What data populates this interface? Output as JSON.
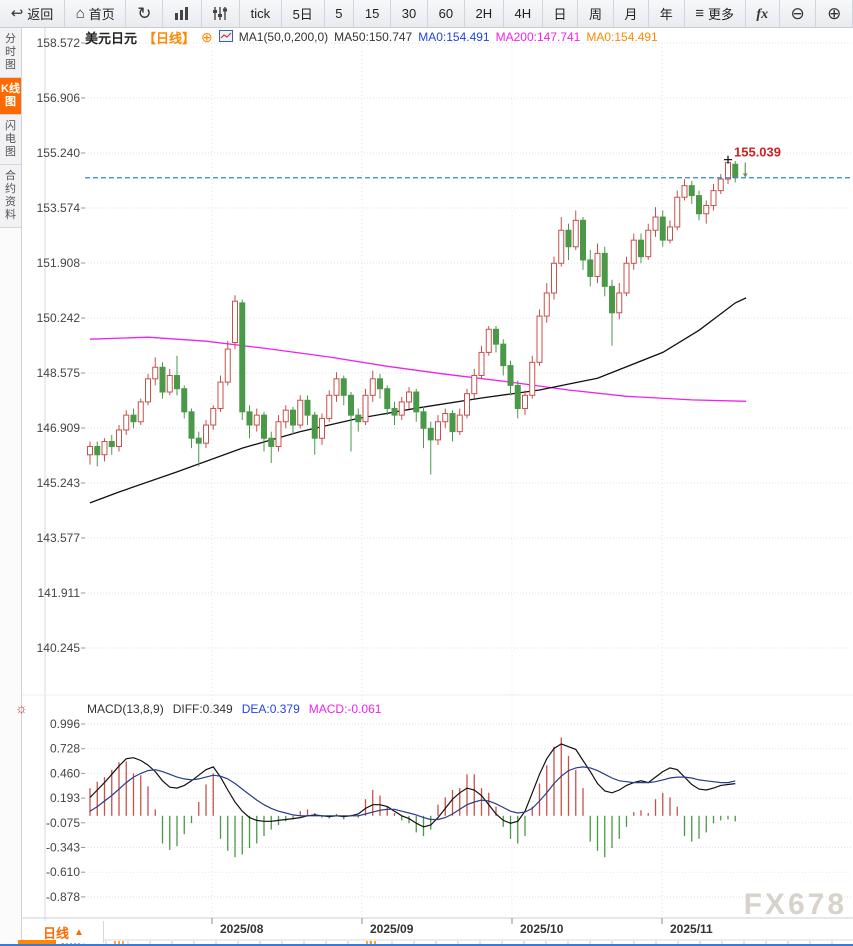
{
  "toolbar": {
    "items": [
      {
        "name": "back-button",
        "icon": "back",
        "label": "返回"
      },
      {
        "name": "home-button",
        "icon": "home",
        "label": "首页"
      },
      {
        "name": "refresh-button",
        "icon": "refresh"
      },
      {
        "name": "volume-chart-button",
        "icon": "bar-chart"
      },
      {
        "name": "indicator-button",
        "icon": "kline"
      },
      {
        "name": "period-tick-button",
        "label": "tick"
      },
      {
        "name": "period-5d-button",
        "label": "5日"
      },
      {
        "name": "period-5m-button",
        "label": "5"
      },
      {
        "name": "period-15m-button",
        "label": "15"
      },
      {
        "name": "period-30m-button",
        "label": "30"
      },
      {
        "name": "period-60m-button",
        "label": "60"
      },
      {
        "name": "period-2h-button",
        "label": "2H"
      },
      {
        "name": "period-4h-button",
        "label": "4H"
      },
      {
        "name": "period-day-button",
        "label": "日"
      },
      {
        "name": "period-week-button",
        "label": "周"
      },
      {
        "name": "period-month-button",
        "label": "月"
      },
      {
        "name": "period-year-button",
        "label": "年"
      },
      {
        "name": "more-button",
        "icon": "menu",
        "label": "更多"
      },
      {
        "name": "formula-button",
        "icon": "fx"
      },
      {
        "name": "zoom-out-button",
        "icon": "zoom-out"
      },
      {
        "name": "zoom-in-button",
        "icon": "zoom-in"
      }
    ]
  },
  "sidebar": {
    "items": [
      {
        "name": "sidebar-item-time-chart",
        "label": "分时图",
        "active": false
      },
      {
        "name": "sidebar-item-kline-chart",
        "label": "K线图",
        "active": true
      },
      {
        "name": "sidebar-item-flash-chart",
        "label": "闪电图",
        "active": false
      },
      {
        "name": "sidebar-item-contract-info",
        "label": "合约资料",
        "active": false
      }
    ]
  },
  "main_header": {
    "symbol": "美元日元",
    "period_tag": "【日线】",
    "plus": "⊕",
    "ma_group": "MA1(50,0,200,0)",
    "ma50": "MA50:150.747",
    "ma0_blue": "MA0:154.491",
    "ma200": "MA200:147.741",
    "ma0_orange": "MA0:154.491"
  },
  "macd_header": {
    "title": "MACD(13,8,9)",
    "diff": "DIFF:0.349",
    "dea": "DEA:0.379",
    "macd": "MACD:-0.061"
  },
  "bottom": {
    "tab_label": "日线",
    "tab_arrow": "▲"
  },
  "watermark": "FX678",
  "colors": {
    "accent_orange": "#ff8800",
    "candle_up": "#c9504a",
    "candle_down": "#4a9948",
    "ma50_line": "#111111",
    "ma200_line": "#ee22ee",
    "diff_line": "#111111",
    "dea_line": "#263c8c",
    "price_line": "#2f86d9",
    "price_label": "#cc2222",
    "hist_up": "#c9504a",
    "hist_down": "#4a9948"
  },
  "chart_data": [
    {
      "type": "candlestick",
      "title": "美元日元 日线",
      "y_ticks": [
        158.572,
        156.906,
        155.24,
        153.574,
        151.908,
        150.242,
        148.575,
        146.909,
        145.243,
        143.577,
        141.911,
        140.245
      ],
      "x_labels": [
        "2025/08",
        "2025/09",
        "2025/10",
        "2025/11"
      ],
      "price_line": 154.49,
      "high_marker": {
        "index": 89,
        "price": 155.039,
        "label": "155.039"
      },
      "last_arrow": {
        "direction": "down"
      },
      "ma50_points": [
        [
          1,
          144.64
        ],
        [
          5,
          144.97
        ],
        [
          13,
          145.58
        ],
        [
          22,
          146.3
        ],
        [
          30,
          146.8
        ],
        [
          38,
          147.2
        ],
        [
          46,
          147.51
        ],
        [
          55,
          147.82
        ],
        [
          63,
          148.06
        ],
        [
          71,
          148.42
        ],
        [
          80,
          149.2
        ],
        [
          85,
          149.87
        ],
        [
          90,
          150.7
        ],
        [
          91.5,
          150.85
        ]
      ],
      "ma200_points": [
        [
          1,
          149.6
        ],
        [
          9,
          149.66
        ],
        [
          17,
          149.54
        ],
        [
          26,
          149.3
        ],
        [
          34,
          149.06
        ],
        [
          42,
          148.78
        ],
        [
          50,
          148.54
        ],
        [
          59,
          148.3
        ],
        [
          67,
          148.06
        ],
        [
          75,
          147.87
        ],
        [
          84,
          147.76
        ],
        [
          91.5,
          147.72
        ]
      ],
      "candles": [
        [
          146.1,
          146.5,
          145.8,
          146.35
        ],
        [
          146.35,
          146.5,
          145.75,
          146.1
        ],
        [
          146.1,
          146.6,
          145.9,
          146.5
        ],
        [
          146.5,
          146.7,
          146.1,
          146.35
        ],
        [
          146.35,
          147.0,
          146.2,
          146.85
        ],
        [
          146.85,
          147.45,
          146.7,
          147.3
        ],
        [
          147.3,
          147.5,
          146.9,
          147.1
        ],
        [
          147.1,
          147.8,
          147.0,
          147.7
        ],
        [
          147.7,
          148.55,
          147.6,
          148.4
        ],
        [
          148.4,
          149.05,
          148.2,
          148.75
        ],
        [
          148.75,
          148.9,
          147.8,
          148.0
        ],
        [
          148.0,
          148.7,
          147.9,
          148.5
        ],
        [
          148.5,
          149.1,
          147.9,
          148.1
        ],
        [
          148.1,
          148.2,
          147.2,
          147.4
        ],
        [
          147.4,
          147.5,
          146.3,
          146.6
        ],
        [
          146.6,
          146.8,
          145.75,
          146.45
        ],
        [
          146.45,
          147.15,
          146.3,
          147.0
        ],
        [
          147.0,
          147.6,
          146.85,
          147.5
        ],
        [
          147.5,
          148.5,
          147.4,
          148.3
        ],
        [
          148.3,
          149.55,
          148.2,
          149.3
        ],
        [
          149.5,
          150.93,
          149.3,
          150.75
        ],
        [
          150.7,
          150.8,
          147.15,
          147.4
        ],
        [
          147.4,
          147.6,
          146.6,
          147.0
        ],
        [
          147.0,
          147.5,
          146.8,
          147.3
        ],
        [
          147.3,
          147.4,
          146.2,
          146.6
        ],
        [
          146.6,
          146.8,
          145.85,
          146.35
        ],
        [
          146.35,
          147.3,
          146.2,
          147.1
        ],
        [
          147.1,
          147.6,
          146.9,
          147.45
        ],
        [
          147.45,
          147.55,
          146.7,
          147.0
        ],
        [
          147.0,
          147.9,
          146.9,
          147.75
        ],
        [
          147.75,
          147.9,
          147.0,
          147.3
        ],
        [
          147.3,
          147.4,
          146.1,
          146.6
        ],
        [
          146.6,
          147.35,
          146.4,
          147.2
        ],
        [
          147.2,
          148.05,
          147.1,
          147.9
        ],
        [
          147.9,
          148.6,
          147.7,
          148.4
        ],
        [
          148.4,
          148.5,
          147.6,
          147.9
        ],
        [
          147.9,
          148.0,
          146.2,
          147.3
        ],
        [
          147.3,
          147.5,
          146.8,
          147.1
        ],
        [
          147.1,
          148.1,
          147.0,
          147.9
        ],
        [
          147.9,
          148.65,
          147.7,
          148.4
        ],
        [
          148.4,
          148.55,
          147.8,
          148.1
        ],
        [
          148.1,
          148.2,
          147.3,
          147.5
        ],
        [
          147.5,
          147.7,
          147.0,
          147.3
        ],
        [
          147.3,
          147.85,
          147.15,
          147.7
        ],
        [
          147.7,
          148.15,
          147.5,
          148.0
        ],
        [
          148.0,
          148.1,
          147.1,
          147.4
        ],
        [
          147.4,
          147.55,
          146.3,
          146.9
        ],
        [
          146.9,
          147.1,
          145.5,
          146.55
        ],
        [
          146.55,
          147.3,
          146.4,
          147.1
        ],
        [
          147.1,
          147.5,
          146.9,
          147.35
        ],
        [
          147.35,
          147.45,
          146.5,
          146.8
        ],
        [
          146.8,
          147.5,
          146.7,
          147.3
        ],
        [
          147.3,
          148.1,
          147.2,
          147.95
        ],
        [
          147.95,
          148.7,
          147.8,
          148.5
        ],
        [
          148.5,
          149.4,
          148.4,
          149.2
        ],
        [
          149.2,
          150.0,
          149.1,
          149.9
        ],
        [
          149.9,
          150.0,
          149.2,
          149.45
        ],
        [
          149.45,
          149.6,
          148.5,
          148.8
        ],
        [
          148.8,
          148.95,
          147.9,
          148.2
        ],
        [
          148.2,
          148.35,
          147.2,
          147.5
        ],
        [
          147.5,
          148.05,
          147.3,
          147.9
        ],
        [
          147.9,
          149.1,
          147.8,
          148.9
        ],
        [
          148.9,
          150.5,
          148.8,
          150.3
        ],
        [
          150.3,
          151.3,
          150.1,
          151.0
        ],
        [
          151.0,
          152.1,
          150.8,
          151.9
        ],
        [
          151.9,
          153.3,
          151.8,
          152.9
        ],
        [
          152.9,
          153.1,
          152.0,
          152.4
        ],
        [
          152.4,
          153.5,
          152.3,
          153.2
        ],
        [
          153.2,
          153.3,
          151.7,
          152.0
        ],
        [
          152.0,
          152.3,
          151.2,
          151.5
        ],
        [
          151.5,
          152.5,
          151.3,
          152.2
        ],
        [
          152.2,
          152.4,
          150.9,
          151.2
        ],
        [
          151.2,
          151.4,
          149.4,
          150.4
        ],
        [
          150.4,
          151.3,
          150.2,
          151.0
        ],
        [
          151.0,
          152.1,
          150.9,
          151.9
        ],
        [
          151.9,
          152.8,
          151.7,
          152.6
        ],
        [
          152.6,
          152.8,
          151.9,
          152.1
        ],
        [
          152.1,
          153.1,
          152.0,
          152.9
        ],
        [
          152.9,
          153.6,
          152.7,
          153.3
        ],
        [
          153.3,
          153.5,
          152.4,
          152.6
        ],
        [
          152.6,
          153.2,
          152.5,
          153.0
        ],
        [
          153.0,
          154.1,
          152.9,
          153.9
        ],
        [
          153.9,
          154.45,
          153.8,
          154.25
        ],
        [
          154.25,
          154.4,
          153.7,
          153.95
        ],
        [
          153.95,
          154.1,
          153.2,
          153.4
        ],
        [
          153.4,
          153.8,
          153.1,
          153.65
        ],
        [
          153.65,
          154.3,
          153.5,
          154.1
        ],
        [
          154.1,
          154.6,
          154.0,
          154.45
        ],
        [
          154.45,
          155.039,
          154.3,
          154.95
        ],
        [
          154.9,
          155.0,
          154.35,
          154.5
        ]
      ]
    },
    {
      "type": "macd",
      "params": "MACD(13,8,9)",
      "y_ticks": [
        0.996,
        0.728,
        0.46,
        0.193,
        -0.075,
        -0.343,
        -0.61,
        -0.878
      ],
      "hist": [
        0.3,
        0.37,
        0.42,
        0.5,
        0.58,
        0.59,
        0.46,
        0.44,
        0.32,
        0.07,
        -0.3,
        -0.37,
        -0.33,
        -0.2,
        -0.08,
        0.15,
        0.34,
        0.46,
        -0.25,
        -0.38,
        -0.45,
        -0.42,
        -0.35,
        -0.3,
        -0.22,
        -0.15,
        -0.1,
        -0.06,
        -0.04,
        0.05,
        0.07,
        0.03,
        -0.02,
        -0.03,
        0.02,
        -0.04,
        0.01,
        -0.02,
        0.18,
        0.28,
        0.22,
        0.1,
        0.03,
        -0.05,
        -0.08,
        -0.18,
        -0.22,
        -0.15,
        0.12,
        0.2,
        0.28,
        0.3,
        0.45,
        0.45,
        0.3,
        0.25,
        0.1,
        -0.12,
        -0.25,
        -0.3,
        -0.22,
        0.1,
        0.35,
        0.55,
        0.75,
        0.85,
        0.65,
        0.5,
        0.3,
        -0.28,
        -0.38,
        -0.45,
        -0.35,
        -0.25,
        -0.12,
        0.04,
        0.06,
        0.03,
        0.18,
        0.25,
        0.2,
        0.1,
        -0.22,
        -0.28,
        -0.25,
        -0.18,
        -0.08,
        -0.05,
        -0.04,
        -0.061
      ],
      "diff": [
        0.2,
        0.28,
        0.36,
        0.45,
        0.54,
        0.62,
        0.63,
        0.6,
        0.55,
        0.48,
        0.38,
        0.31,
        0.3,
        0.33,
        0.38,
        0.44,
        0.5,
        0.53,
        0.42,
        0.28,
        0.15,
        0.05,
        -0.02,
        -0.05,
        -0.06,
        -0.06,
        -0.05,
        -0.04,
        -0.03,
        -0.02,
        0.0,
        0.01,
        0.0,
        -0.01,
        0.0,
        -0.01,
        0.0,
        0.02,
        0.08,
        0.12,
        0.12,
        0.1,
        0.05,
        0.0,
        -0.03,
        -0.08,
        -0.12,
        -0.1,
        -0.02,
        0.08,
        0.18,
        0.25,
        0.3,
        0.28,
        0.22,
        0.12,
        0.02,
        -0.05,
        -0.08,
        -0.06,
        0.05,
        0.25,
        0.45,
        0.62,
        0.73,
        0.78,
        0.75,
        0.72,
        0.6,
        0.48,
        0.35,
        0.27,
        0.25,
        0.28,
        0.33,
        0.36,
        0.38,
        0.36,
        0.42,
        0.48,
        0.52,
        0.5,
        0.42,
        0.34,
        0.29,
        0.28,
        0.3,
        0.33,
        0.34,
        0.349
      ],
      "dea": [
        0.05,
        0.1,
        0.16,
        0.22,
        0.29,
        0.36,
        0.42,
        0.46,
        0.49,
        0.5,
        0.48,
        0.45,
        0.42,
        0.4,
        0.39,
        0.4,
        0.42,
        0.44,
        0.43,
        0.4,
        0.35,
        0.29,
        0.23,
        0.17,
        0.12,
        0.08,
        0.05,
        0.03,
        0.01,
        0.0,
        0.0,
        0.0,
        0.0,
        0.0,
        0.0,
        0.0,
        0.0,
        0.0,
        0.02,
        0.04,
        0.06,
        0.07,
        0.07,
        0.05,
        0.03,
        0.01,
        -0.02,
        -0.04,
        -0.04,
        -0.02,
        0.02,
        0.07,
        0.12,
        0.15,
        0.17,
        0.16,
        0.13,
        0.09,
        0.05,
        0.03,
        0.04,
        0.08,
        0.16,
        0.25,
        0.35,
        0.43,
        0.49,
        0.52,
        0.53,
        0.52,
        0.49,
        0.45,
        0.41,
        0.38,
        0.37,
        0.36,
        0.36,
        0.36,
        0.37,
        0.39,
        0.41,
        0.42,
        0.42,
        0.41,
        0.39,
        0.38,
        0.37,
        0.36,
        0.36,
        0.379
      ]
    }
  ]
}
